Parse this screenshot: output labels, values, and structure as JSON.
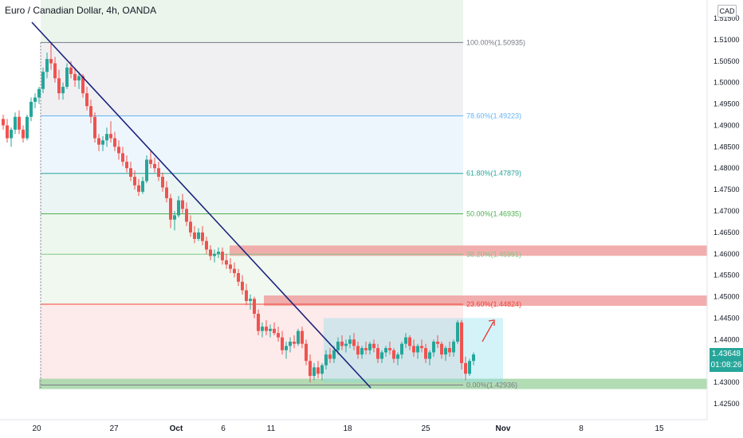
{
  "header": {
    "title": "Euro / Canadian Dollar, 4h, OANDA",
    "currency": "CAD"
  },
  "price_tag": {
    "price": "1.43648",
    "countdown": "01:08:26"
  },
  "colors": {
    "up": "#26a69a",
    "down": "#ef5350",
    "trendline": "#1a237e",
    "box": "#80deea",
    "resistance": "#ef9a9a",
    "support": "#a5d6a7"
  },
  "chart_data": {
    "type": "candlestick",
    "symbol": "Euro / Canadian Dollar",
    "interval": "4h",
    "exchange": "OANDA",
    "ylim": [
      1.42,
      1.52
    ],
    "y_ticks": [
      "1.51500",
      "1.51000",
      "1.50500",
      "1.50000",
      "1.49500",
      "1.49000",
      "1.48500",
      "1.48000",
      "1.47500",
      "1.47000",
      "1.46500",
      "1.46000",
      "1.45500",
      "1.45000",
      "1.44500",
      "1.44000",
      "1.43500",
      "1.43000",
      "1.42500"
    ],
    "x_ticks": [
      "20",
      "27",
      "Oct",
      "6",
      "11",
      "18",
      "25",
      "Nov",
      "8",
      "15"
    ],
    "fib_levels": [
      {
        "ratio": 1.0,
        "label": "100.00%(1.50935)",
        "price": 1.50935,
        "line": "#787b86",
        "fill": "#f0f0f3",
        "text": "#787b86"
      },
      {
        "ratio": 0.786,
        "label": "78.60%(1.49223)",
        "price": 1.49223,
        "line": "#64b5f6",
        "fill": "#eef6fd",
        "text": "#64b5f6"
      },
      {
        "ratio": 0.618,
        "label": "61.80%(1.47879)",
        "price": 1.47879,
        "line": "#26a69a",
        "fill": "#ebf5f3",
        "text": "#26a69a"
      },
      {
        "ratio": 0.5,
        "label": "50.00%(1.46935)",
        "price": 1.46935,
        "line": "#4caf50",
        "fill": "#eef7ee",
        "text": "#4caf50"
      },
      {
        "ratio": 0.382,
        "label": "38.20%(1.45991)",
        "price": 1.45991,
        "line": "#81c784",
        "fill": "#f0f8f0",
        "text": "#81c784"
      },
      {
        "ratio": 0.236,
        "label": "23.60%(1.44824)",
        "price": 1.44824,
        "line": "#f44336",
        "fill": "#fdeaea",
        "text": "#f44336"
      },
      {
        "ratio": 0.0,
        "label": "0.00%(1.42936)",
        "price": 1.42936,
        "line": "#787b86",
        "fill": null,
        "text": "#787b86"
      }
    ],
    "candles": [
      [
        1.4915,
        1.4925,
        1.489,
        1.49
      ],
      [
        1.49,
        1.4915,
        1.486,
        1.487
      ],
      [
        1.487,
        1.4895,
        1.485,
        1.489
      ],
      [
        1.489,
        1.493,
        1.488,
        1.492
      ],
      [
        1.492,
        1.4935,
        1.488,
        1.489
      ],
      [
        1.489,
        1.49,
        1.486,
        1.487
      ],
      [
        1.487,
        1.4925,
        1.4865,
        1.492
      ],
      [
        1.492,
        1.4965,
        1.491,
        1.4955
      ],
      [
        1.4955,
        1.4975,
        1.494,
        1.4965
      ],
      [
        1.4965,
        1.499,
        1.495,
        1.4985
      ],
      [
        1.4985,
        1.5035,
        1.4975,
        1.5025
      ],
      [
        1.5025,
        1.507,
        1.501,
        1.5055
      ],
      [
        1.5055,
        1.5095,
        1.503,
        1.5045
      ],
      [
        1.5045,
        1.506,
        1.5,
        1.501
      ],
      [
        1.501,
        1.503,
        1.496,
        1.4975
      ],
      [
        1.4975,
        1.5,
        1.496,
        1.499
      ],
      [
        1.499,
        1.5045,
        1.4985,
        1.5035
      ],
      [
        1.5035,
        1.505,
        1.501,
        1.502
      ],
      [
        1.502,
        1.5035,
        1.499,
        1.5005
      ],
      [
        1.5005,
        1.5025,
        1.4985,
        1.5015
      ],
      [
        1.5015,
        1.502,
        1.4965,
        1.4975
      ],
      [
        1.4975,
        1.499,
        1.4935,
        1.4945
      ],
      [
        1.4945,
        1.496,
        1.4905,
        1.492
      ],
      [
        1.492,
        1.493,
        1.486,
        1.487
      ],
      [
        1.487,
        1.488,
        1.484,
        1.4855
      ],
      [
        1.4855,
        1.4875,
        1.484,
        1.4865
      ],
      [
        1.4865,
        1.4895,
        1.485,
        1.488
      ],
      [
        1.488,
        1.491,
        1.486,
        1.487
      ],
      [
        1.487,
        1.4885,
        1.484,
        1.485
      ],
      [
        1.485,
        1.4865,
        1.482,
        1.4835
      ],
      [
        1.4835,
        1.485,
        1.4805,
        1.4815
      ],
      [
        1.4815,
        1.483,
        1.479,
        1.48
      ],
      [
        1.48,
        1.4815,
        1.477,
        1.478
      ],
      [
        1.478,
        1.4795,
        1.475,
        1.476
      ],
      [
        1.476,
        1.4775,
        1.4735,
        1.4745
      ],
      [
        1.4745,
        1.478,
        1.474,
        1.477
      ],
      [
        1.477,
        1.483,
        1.4765,
        1.482
      ],
      [
        1.482,
        1.484,
        1.48,
        1.481
      ],
      [
        1.481,
        1.4825,
        1.479,
        1.48
      ],
      [
        1.48,
        1.4815,
        1.477,
        1.478
      ],
      [
        1.478,
        1.479,
        1.4745,
        1.4755
      ],
      [
        1.4755,
        1.477,
        1.472,
        1.473
      ],
      [
        1.473,
        1.474,
        1.466,
        1.468
      ],
      [
        1.468,
        1.47,
        1.4655,
        1.469
      ],
      [
        1.469,
        1.4735,
        1.4685,
        1.4725
      ],
      [
        1.4725,
        1.474,
        1.4695,
        1.4705
      ],
      [
        1.4705,
        1.472,
        1.4665,
        1.4675
      ],
      [
        1.4675,
        1.469,
        1.464,
        1.465
      ],
      [
        1.465,
        1.4665,
        1.4625,
        1.4635
      ],
      [
        1.4635,
        1.466,
        1.463,
        1.465
      ],
      [
        1.465,
        1.4665,
        1.462,
        1.463
      ],
      [
        1.463,
        1.464,
        1.46,
        1.461
      ],
      [
        1.461,
        1.462,
        1.4585,
        1.4595
      ],
      [
        1.4595,
        1.461,
        1.458,
        1.46
      ],
      [
        1.46,
        1.4615,
        1.459,
        1.4605
      ],
      [
        1.4605,
        1.4615,
        1.4575,
        1.4585
      ],
      [
        1.4585,
        1.46,
        1.4565,
        1.4575
      ],
      [
        1.4575,
        1.459,
        1.4555,
        1.4565
      ],
      [
        1.4565,
        1.458,
        1.4545,
        1.4555
      ],
      [
        1.4555,
        1.4565,
        1.4525,
        1.4535
      ],
      [
        1.4535,
        1.455,
        1.4505,
        1.4515
      ],
      [
        1.4515,
        1.453,
        1.448,
        1.449
      ],
      [
        1.449,
        1.4505,
        1.447,
        1.4495
      ],
      [
        1.4495,
        1.45,
        1.445,
        1.446
      ],
      [
        1.446,
        1.447,
        1.441,
        1.442
      ],
      [
        1.442,
        1.444,
        1.4405,
        1.443
      ],
      [
        1.443,
        1.4445,
        1.441,
        1.442
      ],
      [
        1.442,
        1.4435,
        1.4405,
        1.4425
      ],
      [
        1.4425,
        1.444,
        1.441,
        1.4415
      ],
      [
        1.4415,
        1.443,
        1.4395,
        1.4405
      ],
      [
        1.4405,
        1.442,
        1.4365,
        1.4375
      ],
      [
        1.4375,
        1.4395,
        1.4355,
        1.4385
      ],
      [
        1.4385,
        1.4405,
        1.437,
        1.4395
      ],
      [
        1.4395,
        1.441,
        1.438,
        1.439
      ],
      [
        1.439,
        1.4425,
        1.4385,
        1.442
      ],
      [
        1.442,
        1.443,
        1.438,
        1.439
      ],
      [
        1.439,
        1.44,
        1.434,
        1.435
      ],
      [
        1.435,
        1.4365,
        1.43,
        1.4315
      ],
      [
        1.4315,
        1.4345,
        1.4305,
        1.4335
      ],
      [
        1.4335,
        1.435,
        1.431,
        1.432
      ],
      [
        1.432,
        1.4345,
        1.4305,
        1.434
      ],
      [
        1.434,
        1.4375,
        1.433,
        1.4365
      ],
      [
        1.4365,
        1.438,
        1.4345,
        1.4355
      ],
      [
        1.4355,
        1.4385,
        1.4345,
        1.4375
      ],
      [
        1.4375,
        1.4405,
        1.4365,
        1.4395
      ],
      [
        1.4395,
        1.441,
        1.4375,
        1.4385
      ],
      [
        1.4385,
        1.44,
        1.437,
        1.439
      ],
      [
        1.439,
        1.441,
        1.438,
        1.44
      ],
      [
        1.44,
        1.4415,
        1.4375,
        1.4385
      ],
      [
        1.4385,
        1.4395,
        1.4355,
        1.4365
      ],
      [
        1.4365,
        1.4385,
        1.4355,
        1.438
      ],
      [
        1.438,
        1.4395,
        1.4365,
        1.4375
      ],
      [
        1.4375,
        1.4395,
        1.4365,
        1.439
      ],
      [
        1.439,
        1.44,
        1.437,
        1.438
      ],
      [
        1.438,
        1.439,
        1.4345,
        1.4355
      ],
      [
        1.4355,
        1.4375,
        1.4345,
        1.437
      ],
      [
        1.437,
        1.4385,
        1.436,
        1.438
      ],
      [
        1.438,
        1.4395,
        1.4365,
        1.4375
      ],
      [
        1.4375,
        1.438,
        1.4345,
        1.4355
      ],
      [
        1.4355,
        1.437,
        1.434,
        1.4365
      ],
      [
        1.4365,
        1.4395,
        1.4355,
        1.439
      ],
      [
        1.439,
        1.4415,
        1.438,
        1.4405
      ],
      [
        1.4405,
        1.441,
        1.4375,
        1.4385
      ],
      [
        1.4385,
        1.44,
        1.436,
        1.437
      ],
      [
        1.437,
        1.439,
        1.4355,
        1.4385
      ],
      [
        1.4385,
        1.44,
        1.437,
        1.438
      ],
      [
        1.438,
        1.439,
        1.4345,
        1.4355
      ],
      [
        1.4355,
        1.4375,
        1.434,
        1.437
      ],
      [
        1.437,
        1.44,
        1.436,
        1.4395
      ],
      [
        1.4395,
        1.441,
        1.438,
        1.439
      ],
      [
        1.439,
        1.4395,
        1.4355,
        1.4365
      ],
      [
        1.4365,
        1.4385,
        1.435,
        1.438
      ],
      [
        1.438,
        1.4395,
        1.436,
        1.437
      ],
      [
        1.437,
        1.44,
        1.436,
        1.4395
      ],
      [
        1.4395,
        1.4445,
        1.439,
        1.444
      ],
      [
        1.444,
        1.4445,
        1.433,
        1.4345
      ],
      [
        1.4345,
        1.436,
        1.4305,
        1.432
      ],
      [
        1.432,
        1.4355,
        1.4315,
        1.435
      ],
      [
        1.435,
        1.437,
        1.434,
        1.4365
      ]
    ],
    "annotations": {
      "trendline": {
        "from": "Sep 19",
        "to": "Oct 22"
      },
      "consolidation_box": {
        "top": 1.445,
        "bottom": 1.43
      },
      "resistance_zones": [
        1.45991,
        1.44824
      ],
      "support_zone": 1.42936,
      "projection_arrow": "up"
    }
  }
}
